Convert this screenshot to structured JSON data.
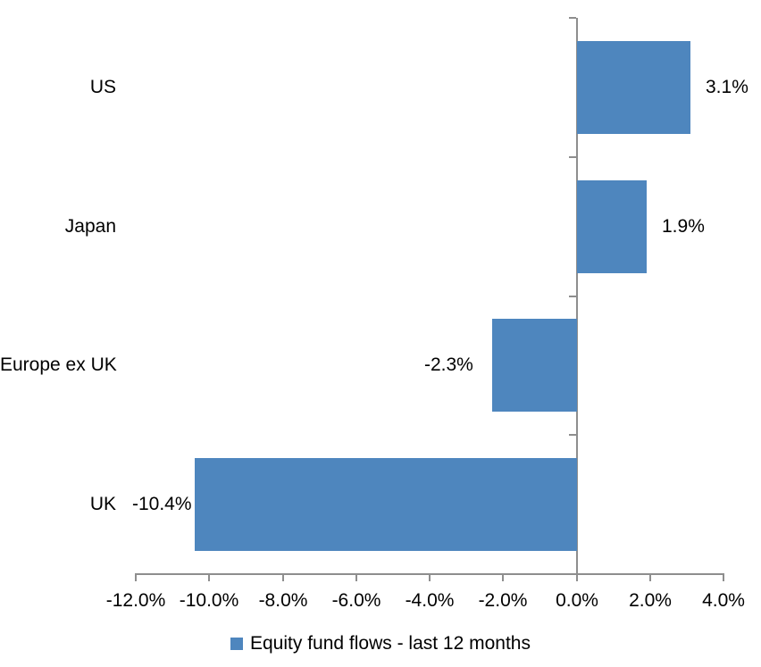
{
  "chart_data": {
    "type": "bar",
    "orientation": "horizontal",
    "categories": [
      "US",
      "Japan",
      "Europe ex UK",
      "UK"
    ],
    "values": [
      3.1,
      1.9,
      -2.3,
      -10.4
    ],
    "data_labels": [
      "3.1%",
      "1.9%",
      "-2.3%",
      "-10.4%"
    ],
    "x_ticks": [
      -12,
      -10,
      -8,
      -6,
      -4,
      -2,
      0,
      2,
      4
    ],
    "x_tick_labels": [
      "-12.0%",
      "-10.0%",
      "-8.0%",
      "-6.0%",
      "-4.0%",
      "-2.0%",
      "0.0%",
      "2.0%",
      "4.0%"
    ],
    "xlim": [
      -12,
      4
    ],
    "legend": "Equity fund flows - last 12 months",
    "legend_position": "bottom",
    "bar_color": "#4e86be",
    "axis_color": "#8e8e8e",
    "text_color": "#000000",
    "background_color": "#ffffff",
    "grid": false
  }
}
